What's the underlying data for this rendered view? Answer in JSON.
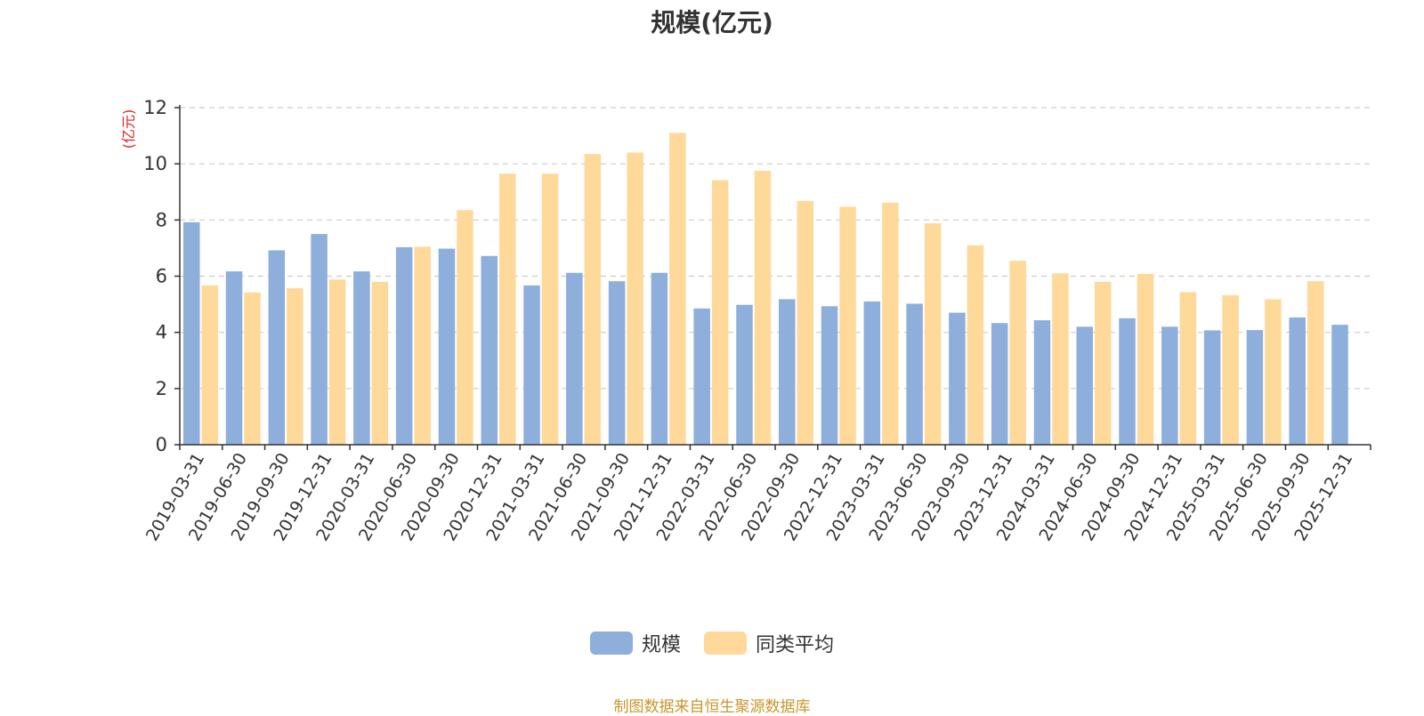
{
  "chart_data": {
    "type": "bar",
    "title": "规模(亿元)",
    "ylabel": "(亿元)",
    "ylim": [
      0,
      12
    ],
    "yticks": [
      0,
      2,
      4,
      6,
      8,
      10,
      12
    ],
    "grid": true,
    "legend_position": "bottom",
    "categories": [
      "2019-03-31",
      "2019-06-30",
      "2019-09-30",
      "2019-12-31",
      "2020-03-31",
      "2020-06-30",
      "2020-09-30",
      "2020-12-31",
      "2021-03-31",
      "2021-06-30",
      "2021-09-30",
      "2021-12-31",
      "2022-03-31",
      "2022-06-30",
      "2022-09-30",
      "2022-12-31",
      "2023-03-31",
      "2023-06-30",
      "2023-09-30",
      "2023-12-31",
      "2024-03-31",
      "2024-06-30",
      "2024-09-30",
      "2024-12-31",
      "2025-03-31",
      "2025-06-30",
      "2025-09-30",
      "2025-12-31"
    ],
    "series": [
      {
        "name": "规模",
        "color": "#8eaedb",
        "values": [
          7.92,
          6.17,
          6.92,
          7.5,
          6.17,
          7.03,
          6.98,
          6.72,
          5.67,
          6.12,
          5.82,
          6.12,
          4.85,
          4.98,
          5.18,
          4.93,
          5.1,
          5.02,
          4.7,
          4.33,
          4.43,
          4.2,
          4.5,
          4.2,
          4.07,
          4.08,
          4.53,
          4.27
        ]
      },
      {
        "name": "同类平均",
        "color": "#ffd99a",
        "values": [
          5.67,
          5.42,
          5.57,
          5.88,
          5.8,
          7.05,
          8.35,
          9.65,
          9.65,
          10.35,
          10.4,
          11.1,
          9.42,
          9.75,
          8.68,
          8.47,
          8.62,
          7.88,
          7.1,
          6.55,
          6.1,
          5.8,
          6.08,
          5.43,
          5.32,
          5.18,
          5.82,
          null
        ]
      }
    ]
  },
  "footer": {
    "source": "制图数据来自恒生聚源数据库"
  }
}
